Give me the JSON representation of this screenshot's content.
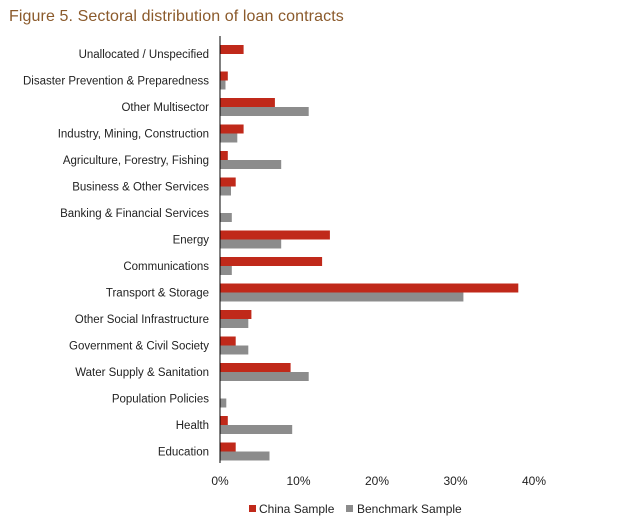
{
  "title": "Figure 5. Sectoral distribution of loan contracts",
  "colors": {
    "china": "#c0291a",
    "benchmark": "#8c8c8c",
    "title": "#8b5a2b"
  },
  "chart_data": {
    "type": "bar",
    "orientation": "horizontal",
    "categories": [
      "Unallocated / Unspecified",
      "Disaster Prevention & Preparedness",
      "Other Multisector",
      "Industry, Mining, Construction",
      "Agriculture, Forestry, Fishing",
      "Business & Other Services",
      "Banking & Financial Services",
      "Energy",
      "Communications",
      "Transport & Storage",
      "Other Social Infrastructure",
      "Government & Civil Society",
      "Water Supply & Sanitation",
      "Population Policies",
      "Health",
      "Education"
    ],
    "series": [
      {
        "name": "China Sample",
        "values": [
          3.0,
          1.0,
          7.0,
          3.0,
          1.0,
          2.0,
          0.0,
          14.0,
          13.0,
          38.0,
          4.0,
          2.0,
          9.0,
          0.0,
          1.0,
          2.0
        ]
      },
      {
        "name": "Benchmark Sample",
        "values": [
          0.0,
          0.7,
          11.3,
          2.2,
          7.8,
          1.4,
          1.5,
          7.8,
          1.5,
          31.0,
          3.6,
          3.6,
          11.3,
          0.8,
          9.2,
          6.3
        ]
      }
    ],
    "xlim": [
      0,
      40
    ],
    "xticks": [
      "0%",
      "10%",
      "20%",
      "30%",
      "40%"
    ],
    "xtick_values": [
      0,
      10,
      20,
      30,
      40
    ],
    "xlabel": "",
    "ylabel": "",
    "grid": false,
    "legend_position": "bottom"
  }
}
